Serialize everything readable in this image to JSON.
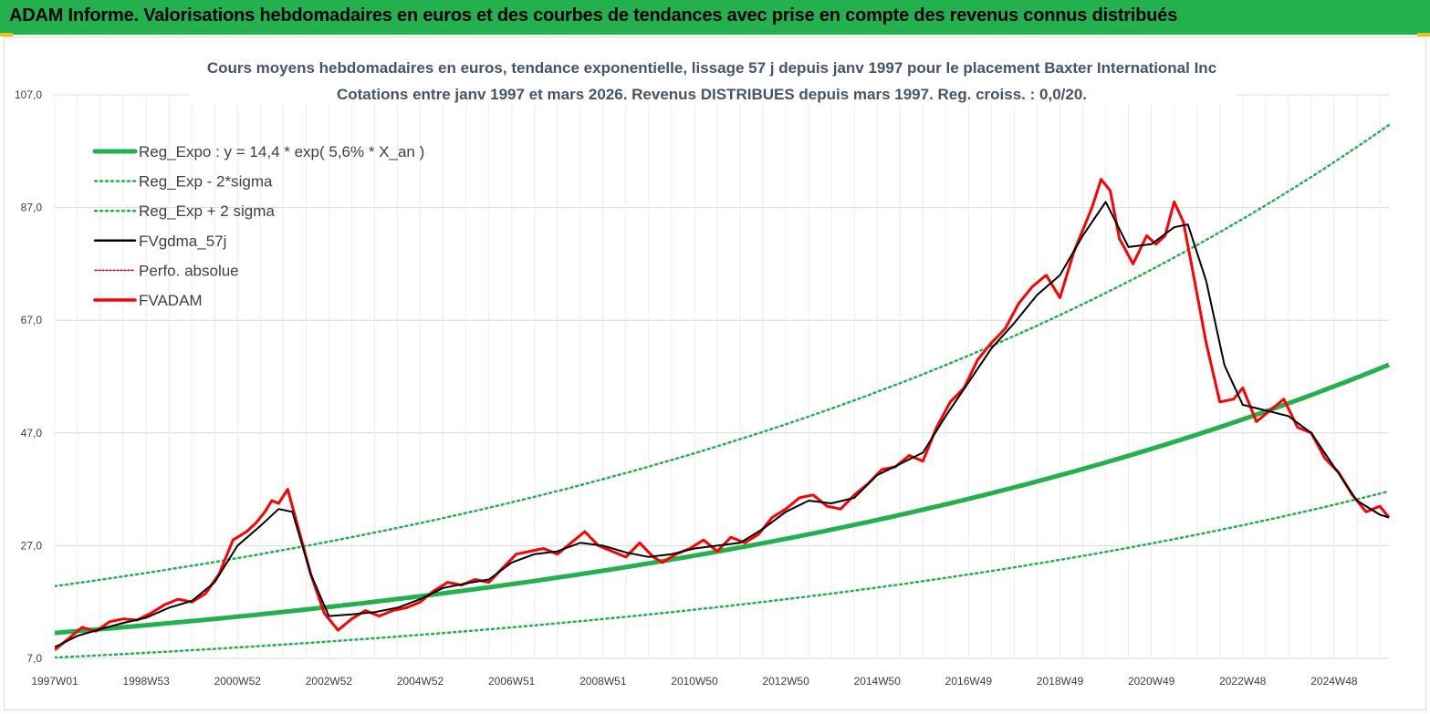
{
  "header": {
    "title": "ADAM Informe. Valorisations hebdomadaires en euros et des courbes de tendances avec prise en compte des revenus connus distribués"
  },
  "colors": {
    "header_bg": "#22b14c",
    "trend": "#22b14c",
    "band": "#22b14c",
    "smoothed": "#000000",
    "price": "#ff0000",
    "perf": "#c00000",
    "grid": "#d9d9d9"
  },
  "chart_data": {
    "type": "line",
    "title": "Cours moyens hebdomadaires en euros, tendance exponentielle, lissage 57 j depuis janv 1997 pour le placement Baxter International Inc",
    "subtitle": "Cotations entre janv 1997 et mars 2026. Revenus DISTRIBUES depuis mars 1997. Reg. croiss. : 0,0/20.",
    "xlabel": "",
    "ylabel": "",
    "ylim": [
      7.0,
      107.0
    ],
    "xlim": [
      1997.0,
      2026.2
    ],
    "grid": true,
    "legend_position": "top-left",
    "y_ticks": [
      "107,0",
      "87,0",
      "67,0",
      "47,0",
      "27,0",
      "7,0"
    ],
    "x_ticks": [
      "1997W01",
      "1998W53",
      "2000W52",
      "2002W52",
      "2004W52",
      "2006W51",
      "2008W51",
      "2010W50",
      "2012W50",
      "2014W50",
      "2016W49",
      "2018W49",
      "2020W49",
      "2022W48",
      "2024W48"
    ],
    "x_tick_values": [
      1997.0,
      1999.0,
      2001.0,
      2003.0,
      2005.0,
      2007.0,
      2009.0,
      2011.0,
      2013.0,
      2015.0,
      2017.0,
      2019.0,
      2021.0,
      2023.0,
      2025.0
    ],
    "legend": [
      "Reg_Expo : y = 14,4 * exp( 5,6% *  X_an )",
      "Reg_Exp - 2*sigma",
      "Reg_Exp + 2 sigma",
      "FVgdma_57j",
      "Perfo. absolue",
      "FVADAM"
    ],
    "regression": {
      "a": 14.4,
      "rate": 0.056,
      "lower_factor": 0.62,
      "upper_factor": 1.72
    },
    "series": [
      {
        "name": "FVADAM",
        "x": [
          1997.0,
          1997.3,
          1997.6,
          1997.9,
          1998.2,
          1998.5,
          1998.8,
          1999.1,
          1999.4,
          1999.7,
          2000.0,
          2000.3,
          2000.6,
          2000.9,
          2001.2,
          2001.4,
          2001.6,
          2001.75,
          2001.9,
          2002.1,
          2002.3,
          2002.6,
          2002.9,
          2003.2,
          2003.5,
          2003.8,
          2004.1,
          2004.4,
          2004.7,
          2005.0,
          2005.3,
          2005.6,
          2005.9,
          2006.2,
          2006.5,
          2006.8,
          2007.1,
          2007.4,
          2007.7,
          2008.0,
          2008.3,
          2008.6,
          2008.9,
          2009.2,
          2009.5,
          2009.8,
          2010.1,
          2010.3,
          2010.6,
          2010.9,
          2011.2,
          2011.5,
          2011.8,
          2012.1,
          2012.4,
          2012.7,
          2013.0,
          2013.3,
          2013.6,
          2013.9,
          2014.2,
          2014.5,
          2014.8,
          2015.1,
          2015.4,
          2015.7,
          2016.0,
          2016.3,
          2016.6,
          2016.9,
          2017.2,
          2017.5,
          2017.8,
          2018.1,
          2018.4,
          2018.7,
          2019.0,
          2019.3,
          2019.5,
          2019.7,
          2019.9,
          2020.1,
          2020.3,
          2020.6,
          2020.9,
          2021.1,
          2021.3,
          2021.5,
          2021.7,
          2021.9,
          2022.2,
          2022.5,
          2022.8,
          2023.0,
          2023.3,
          2023.6,
          2023.9,
          2024.2,
          2024.5,
          2024.8,
          2025.1,
          2025.4,
          2025.7,
          2026.0,
          2026.2
        ],
        "y": [
          8.5,
          10.5,
          12.5,
          11.8,
          13.5,
          14.0,
          13.8,
          15.0,
          16.5,
          17.5,
          17.0,
          18.5,
          22.0,
          28.0,
          29.5,
          31.0,
          33.0,
          35.0,
          34.5,
          37.0,
          31.0,
          22.0,
          15.0,
          12.0,
          14.0,
          15.5,
          14.5,
          15.5,
          16.0,
          17.0,
          19.0,
          20.5,
          20.0,
          21.0,
          20.5,
          23.0,
          25.5,
          26.0,
          26.5,
          25.5,
          27.5,
          29.5,
          27.0,
          26.0,
          25.0,
          27.5,
          25.0,
          24.0,
          25.5,
          26.5,
          28.0,
          26.0,
          28.5,
          27.5,
          29.0,
          32.0,
          33.5,
          35.5,
          36.0,
          34.0,
          33.5,
          36.0,
          38.0,
          40.5,
          41.0,
          43.0,
          42.0,
          48.0,
          52.5,
          55.0,
          60.0,
          63.0,
          65.5,
          70.0,
          73.0,
          75.0,
          71.0,
          79.0,
          83.0,
          87.0,
          92.0,
          90.0,
          81.5,
          77.0,
          82.0,
          80.5,
          82.0,
          88.0,
          84.5,
          76.0,
          63.0,
          52.5,
          53.0,
          55.0,
          49.0,
          51.0,
          53.0,
          48.0,
          47.0,
          42.5,
          40.0,
          36.0,
          33.0,
          34.0,
          32.0
        ]
      },
      {
        "name": "FVgdma_57j",
        "x": [
          1997.0,
          1997.5,
          1998.0,
          1998.5,
          1999.0,
          1999.5,
          2000.0,
          2000.5,
          2001.0,
          2001.5,
          2001.9,
          2002.2,
          2002.6,
          2003.0,
          2003.5,
          2004.0,
          2004.5,
          2005.0,
          2005.5,
          2006.0,
          2006.5,
          2007.0,
          2007.5,
          2008.0,
          2008.5,
          2009.0,
          2009.5,
          2010.0,
          2010.5,
          2011.0,
          2011.5,
          2012.0,
          2012.5,
          2013.0,
          2013.5,
          2014.0,
          2014.5,
          2015.0,
          2015.5,
          2016.0,
          2016.5,
          2017.0,
          2017.5,
          2018.0,
          2018.5,
          2019.0,
          2019.5,
          2020.0,
          2020.5,
          2021.0,
          2021.5,
          2021.8,
          2022.2,
          2022.6,
          2023.0,
          2023.5,
          2024.0,
          2024.5,
          2025.0,
          2025.5,
          2026.0,
          2026.2
        ],
        "y": [
          9.0,
          11.0,
          12.2,
          13.3,
          14.2,
          16.0,
          17.2,
          20.5,
          27.0,
          30.5,
          33.5,
          33.0,
          22.0,
          14.5,
          14.8,
          15.2,
          16.0,
          17.5,
          19.5,
          20.3,
          21.0,
          24.0,
          25.5,
          26.0,
          27.5,
          27.0,
          25.8,
          25.0,
          25.5,
          26.5,
          27.0,
          27.5,
          30.0,
          33.0,
          35.0,
          34.5,
          35.5,
          39.5,
          41.5,
          43.5,
          50.0,
          56.0,
          62.0,
          66.5,
          71.5,
          75.0,
          82.0,
          88.0,
          80.0,
          80.5,
          83.5,
          84.0,
          74.0,
          59.0,
          52.0,
          51.0,
          50.0,
          47.0,
          41.0,
          35.0,
          32.5,
          32.0
        ]
      }
    ]
  }
}
